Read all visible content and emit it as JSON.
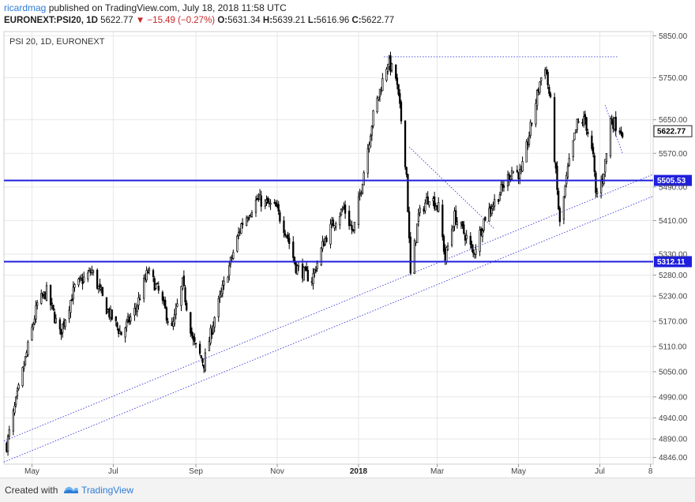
{
  "header": {
    "author": "ricardmag",
    "published_text": "published on TradingView.com, July 18, 2018 11:58 UTC",
    "symbol": "EURONEXT:PSI20, 1D",
    "last": "5622.77",
    "change": "−15.49 (−0.27%)",
    "open_label": "O:",
    "open": "5631.34",
    "high_label": "H:",
    "high": "5639.21",
    "low_label": "L:",
    "low": "5616.96",
    "close_label": "C:",
    "close": "5622.77"
  },
  "footer": {
    "created_with": "Created with",
    "brand": "TradingView"
  },
  "colors": {
    "candle": "#000000",
    "horizontal_line": "#1f1fdd",
    "trend_line": "#3a3adf",
    "grid": "#e7e7e7",
    "label_bg": "#1f1fdd"
  },
  "chart_data": {
    "type": "candlestick",
    "title": "PSI 20, 1D, EURONEXT",
    "x_tick_labels": [
      "May",
      "Jul",
      "Sep",
      "Nov",
      "2018",
      "Mar",
      "May",
      "Jul",
      "8"
    ],
    "y_tick_labels": [
      "5850.00",
      "5750.00",
      "5650.00",
      "5570.00",
      "5490.00",
      "5410.00",
      "5330.00",
      "5280.00",
      "5230.00",
      "5170.00",
      "5110.00",
      "5050.00",
      "4990.00",
      "4940.00",
      "4890.00",
      "4846.00"
    ],
    "last_price": "5622.77",
    "horizontal_levels": [
      {
        "label": "5505.53",
        "value": 5505.53
      },
      {
        "label": "5312.11",
        "value": 5312.11
      }
    ],
    "x_range": [
      "2017-04-10",
      "2018-08-10"
    ],
    "y_range": [
      4830,
      5860
    ],
    "candles": []
  }
}
